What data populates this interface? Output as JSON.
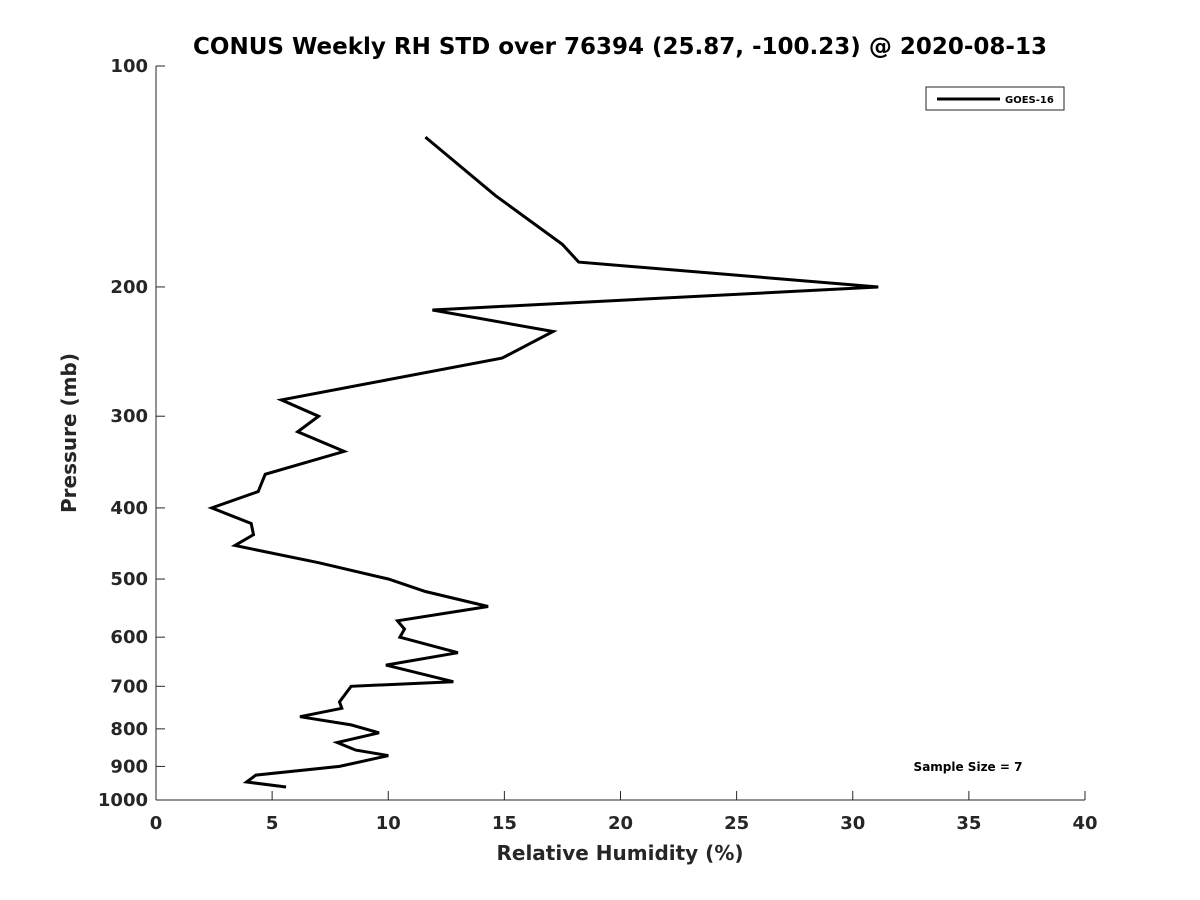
{
  "chart_data": {
    "type": "line",
    "title": "CONUS Weekly RH STD over 76394 (25.87, -100.23) @ 2020-08-13",
    "xlabel": "Relative Humidity (%)",
    "ylabel": "Pressure (mb)",
    "xlim": [
      0,
      40
    ],
    "ylim": [
      100,
      1000
    ],
    "yscale": "log",
    "y_reversed": true,
    "x_ticks": [
      0,
      5,
      10,
      15,
      20,
      25,
      30,
      35,
      40
    ],
    "y_ticks": [
      100,
      200,
      300,
      400,
      500,
      600,
      700,
      800,
      900,
      1000
    ],
    "grid": false,
    "legend_position": "top-right",
    "annotation": "Sample Size = 7",
    "series": [
      {
        "name": "GOES-16",
        "color": "#000000",
        "x": [
          11.6,
          14.6,
          17.5,
          18.2,
          31.1,
          11.9,
          17.1,
          14.9,
          5.4,
          7.0,
          6.1,
          8.1,
          4.7,
          4.4,
          2.4,
          4.1,
          4.2,
          3.4,
          7.0,
          10.0,
          11.6,
          14.3,
          10.4,
          10.7,
          10.5,
          13.0,
          9.9,
          12.8,
          8.4,
          7.9,
          8.0,
          6.2,
          8.4,
          9.6,
          7.8,
          8.6,
          10.0,
          7.9,
          4.3,
          3.9,
          5.6
        ],
        "y": [
          125,
          150,
          175,
          185,
          200,
          215,
          230,
          250,
          285,
          300,
          315,
          335,
          360,
          380,
          400,
          420,
          435,
          450,
          475,
          500,
          520,
          545,
          570,
          585,
          600,
          630,
          655,
          690,
          700,
          735,
          750,
          770,
          790,
          810,
          835,
          855,
          870,
          900,
          925,
          945,
          960
        ]
      }
    ]
  }
}
